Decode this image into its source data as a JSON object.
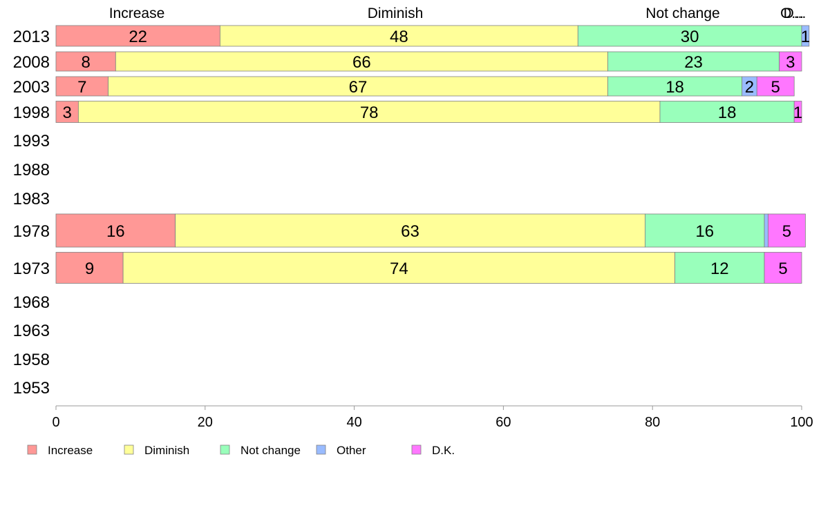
{
  "chart_data": {
    "type": "bar",
    "orientation": "horizontal",
    "stacked": true,
    "categories": [
      "2013",
      "2008",
      "2003",
      "1998",
      "1993",
      "1988",
      "1983",
      "1978",
      "1973",
      "1968",
      "1963",
      "1958",
      "1953"
    ],
    "series": [
      {
        "name": "Increase",
        "color": "#ff9896",
        "values": [
          22,
          8,
          7,
          3,
          null,
          null,
          null,
          16,
          9,
          null,
          null,
          null,
          null
        ]
      },
      {
        "name": "Diminish",
        "color": "#ffff99",
        "values": [
          48,
          66,
          67,
          78,
          null,
          null,
          null,
          63,
          74,
          null,
          null,
          null,
          null
        ]
      },
      {
        "name": "Not change",
        "color": "#99ffbb",
        "values": [
          30,
          23,
          18,
          18,
          null,
          null,
          null,
          16,
          12,
          null,
          null,
          null,
          null
        ]
      },
      {
        "name": "Other",
        "color": "#99bbff",
        "values": [
          1,
          0,
          2,
          0,
          null,
          null,
          null,
          0.5,
          0,
          null,
          null,
          null,
          null
        ]
      },
      {
        "name": "D.K.",
        "color": "#ff77ff",
        "values": [
          0,
          3,
          5,
          1,
          null,
          null,
          null,
          5,
          5,
          null,
          null,
          null,
          null
        ]
      }
    ],
    "label_values": [
      [
        "22",
        "48",
        "30",
        "1",
        ""
      ],
      [
        "8",
        "66",
        "23",
        "",
        "3"
      ],
      [
        "7",
        "67",
        "18",
        "2",
        "5"
      ],
      [
        "3",
        "78",
        "18",
        "",
        "1"
      ],
      [
        "",
        "",
        "",
        "",
        ""
      ],
      [
        "",
        "",
        "",
        "",
        ""
      ],
      [
        "",
        "",
        "",
        "",
        ""
      ],
      [
        "16",
        "63",
        "16",
        "",
        "5"
      ],
      [
        "9",
        "74",
        "12",
        "",
        "5"
      ],
      [
        "",
        "",
        "",
        "",
        ""
      ],
      [
        "",
        "",
        "",
        "",
        ""
      ],
      [
        "",
        "",
        "",
        "",
        ""
      ],
      [
        "",
        "",
        "",
        "",
        ""
      ]
    ],
    "top_labels": [
      "Increase",
      "Diminish",
      "Not change",
      "O...",
      "D..."
    ],
    "xlim": [
      0,
      100
    ],
    "x_ticks": [
      0,
      20,
      40,
      60,
      80,
      100
    ],
    "title": "",
    "xlabel": "",
    "ylabel": "",
    "grid": false,
    "legend_position": "bottom-left"
  }
}
